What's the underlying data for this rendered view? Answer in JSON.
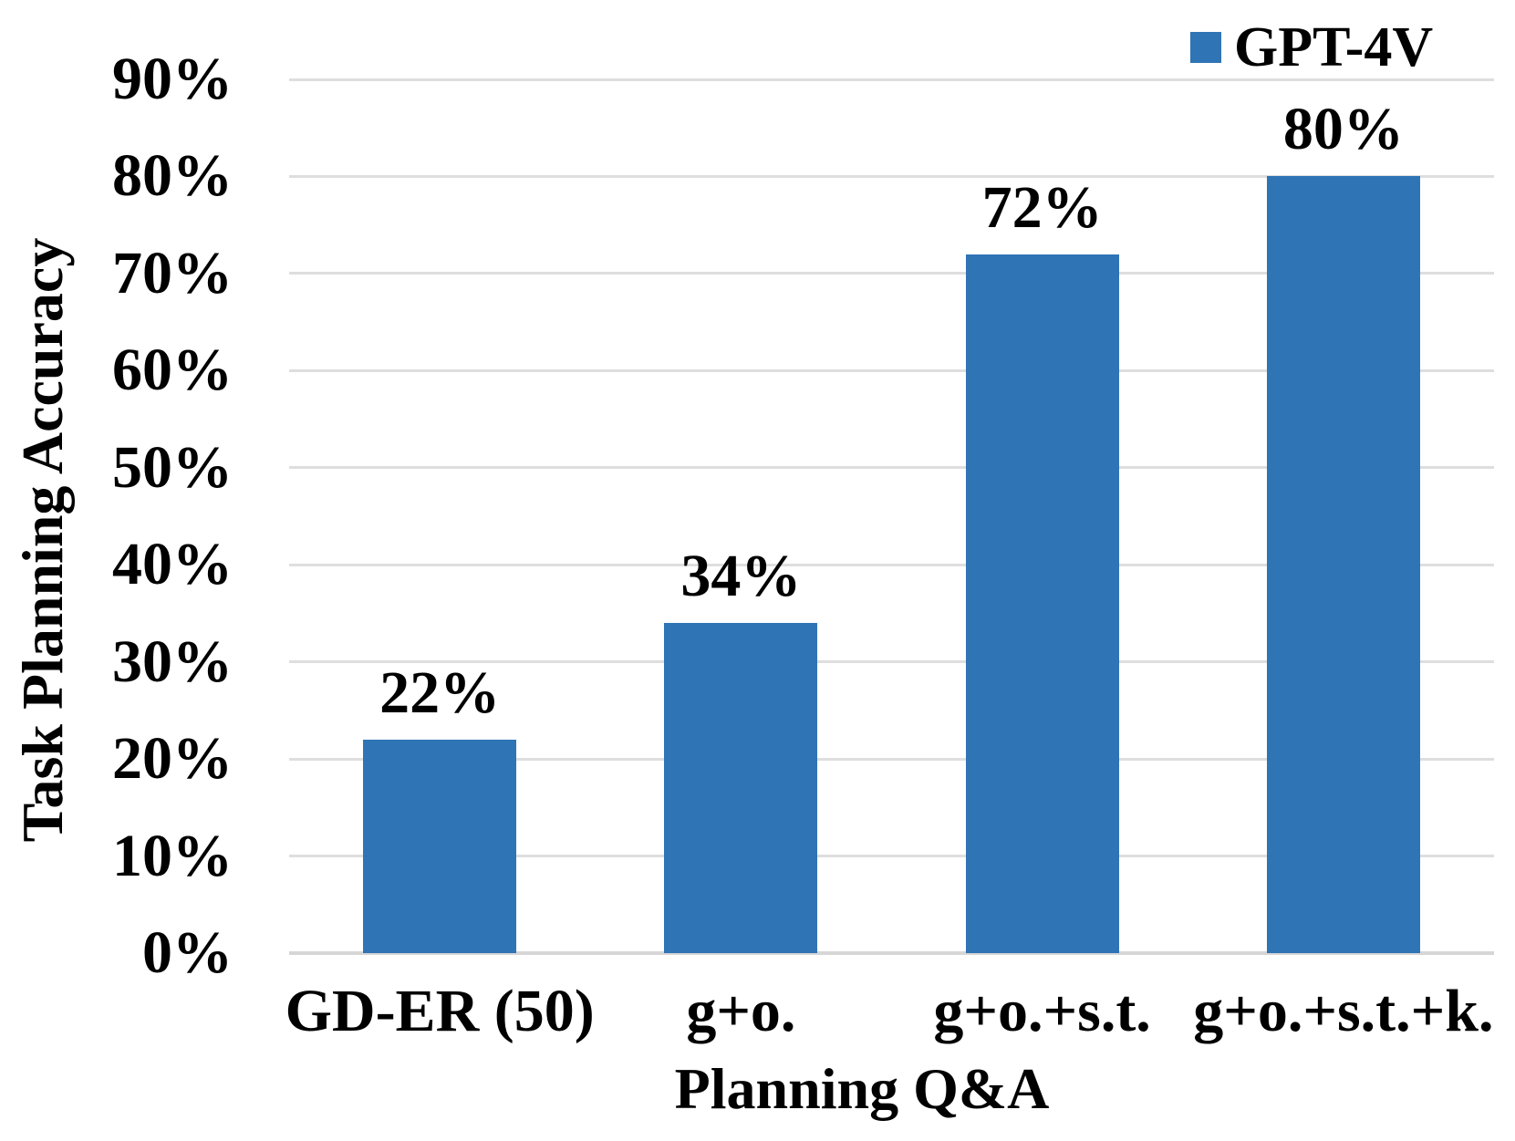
{
  "chart_data": {
    "type": "bar",
    "title": "",
    "xlabel": "Planning Q&A",
    "ylabel": "Task Planning Accuracy",
    "categories": [
      "GD-ER (50)",
      "g+o.",
      "g+o.+s.t.",
      "g+o.+s.t.+k."
    ],
    "series": [
      {
        "name": "GPT-4V",
        "color": "#2F74B5",
        "values": [
          22,
          34,
          72,
          80
        ]
      }
    ],
    "value_labels": [
      "22%",
      "34%",
      "72%",
      "80%"
    ],
    "y_axis": {
      "min": 0,
      "max": 90,
      "unit": "%",
      "tick_values": [
        0,
        10,
        20,
        30,
        40,
        50,
        60,
        70,
        80,
        90
      ],
      "tick_labels": [
        "0%",
        "10%",
        "20%",
        "30%",
        "40%",
        "50%",
        "60%",
        "70%",
        "80%",
        "90%"
      ]
    },
    "grid": "horizontal",
    "legend_position": "top-right",
    "colors": {
      "bar": "#2F74B5",
      "gridline": "#DEDEDE",
      "axis_line": "#D6D6D6",
      "text": "#000000",
      "background": "#FFFFFF"
    }
  }
}
